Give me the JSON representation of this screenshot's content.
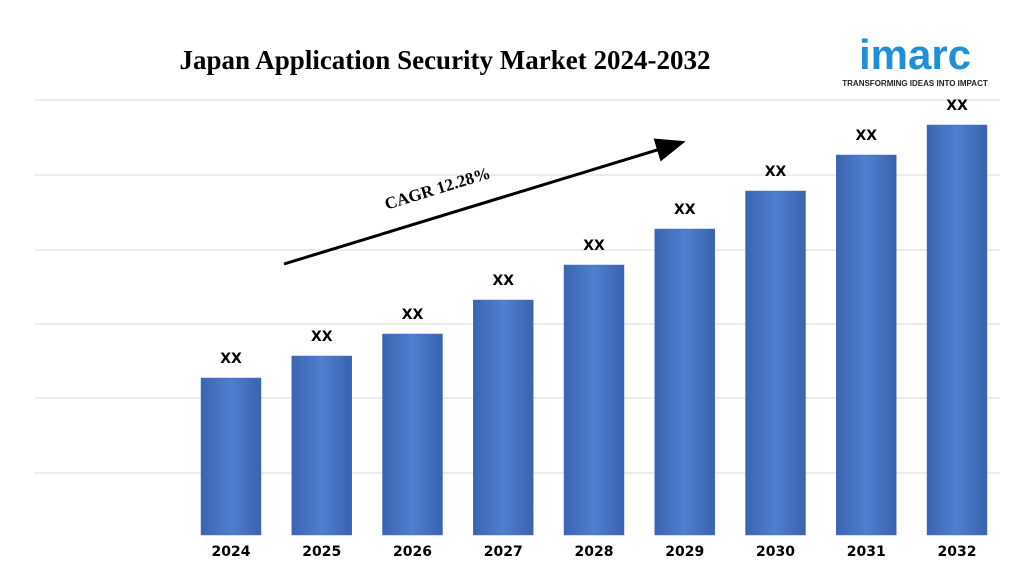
{
  "chart_data": {
    "type": "bar",
    "title": "Japan Application Security Market 2024-2032",
    "categories": [
      "2024",
      "2025",
      "2026",
      "2027",
      "2028",
      "2029",
      "2030",
      "2031",
      "2032"
    ],
    "values": [
      157,
      179,
      201,
      235,
      270,
      306,
      344,
      380,
      410
    ],
    "value_labels": [
      "XX",
      "XX",
      "XX",
      "XX",
      "XX",
      "XX",
      "XX",
      "XX",
      "XX"
    ],
    "color": "#4472c4",
    "ylim": [
      0,
      435
    ],
    "yticks": [
      62,
      137,
      211,
      285,
      360,
      435
    ],
    "grid": true,
    "show_tick_labels": false,
    "annotation": "CAGR 12.28%"
  },
  "logo": {
    "name": "imarc",
    "tagline": "TRANSFORMING IDEAS INTO IMPACT"
  }
}
